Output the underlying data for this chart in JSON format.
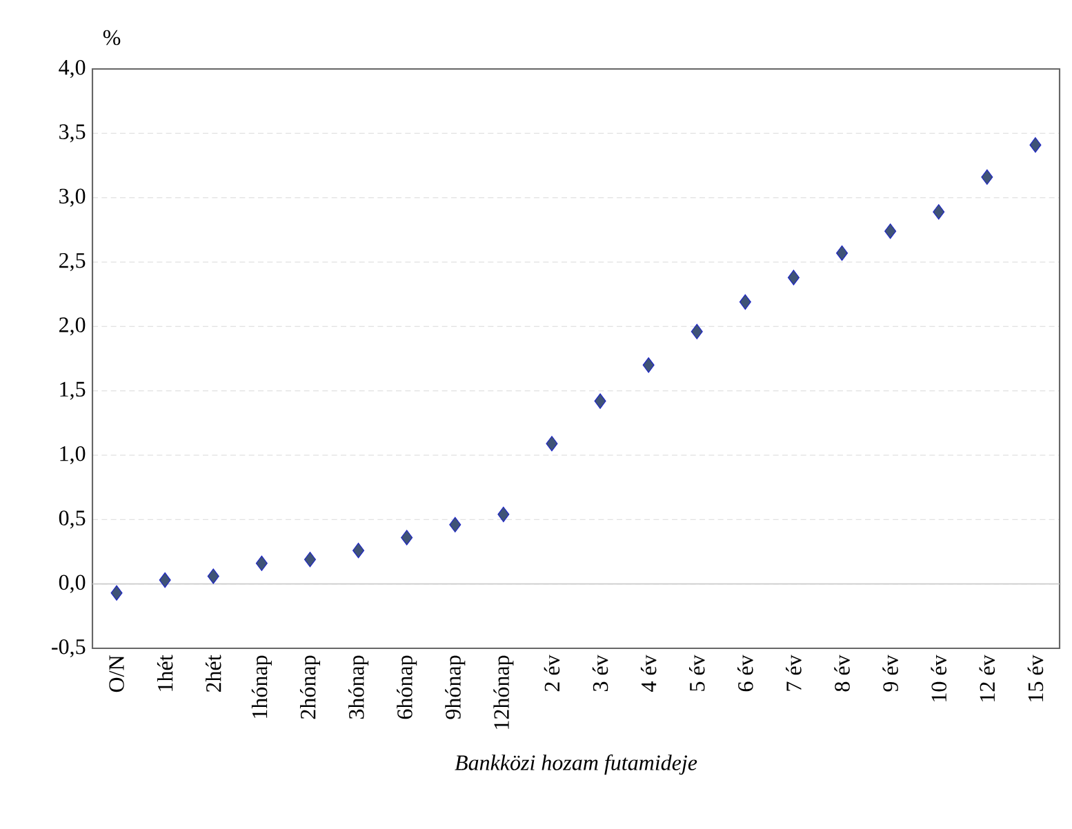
{
  "chart_data": {
    "type": "scatter",
    "ylabel": "%",
    "xlabel": "Bankközi hozam futamideje",
    "categories": [
      "O/N",
      "1hét",
      "2hét",
      "1hónap",
      "2hónap",
      "3hónap",
      "6hónap",
      "9hónap",
      "12hónap",
      "2 év",
      "3 év",
      "4 év",
      "5 év",
      "6 év",
      "7 év",
      "8 év",
      "9 év",
      "10 év",
      "12 év",
      "15 év"
    ],
    "values": [
      -0.07,
      0.03,
      0.06,
      0.16,
      0.19,
      0.26,
      0.36,
      0.46,
      0.54,
      1.09,
      1.42,
      1.7,
      1.96,
      2.19,
      2.38,
      2.57,
      2.74,
      2.89,
      3.16,
      3.41
    ],
    "color": "#3f5377",
    "ylim": [
      -0.5,
      4.0
    ],
    "yticks": [
      {
        "value": -0.5,
        "label": "-0,5"
      },
      {
        "value": 0,
        "label": "0,0"
      },
      {
        "value": 0.5,
        "label": "0,5"
      },
      {
        "value": 1.0,
        "label": "1,0"
      },
      {
        "value": 1.5,
        "label": "1,5"
      },
      {
        "value": 2.0,
        "label": "2,0"
      },
      {
        "value": 2.5,
        "label": "2,5"
      },
      {
        "value": 3.0,
        "label": "3,0"
      },
      {
        "value": 3.5,
        "label": "3,5"
      },
      {
        "value": 4.0,
        "label": "4,0"
      }
    ],
    "grid": "y",
    "marker": "diamond"
  }
}
